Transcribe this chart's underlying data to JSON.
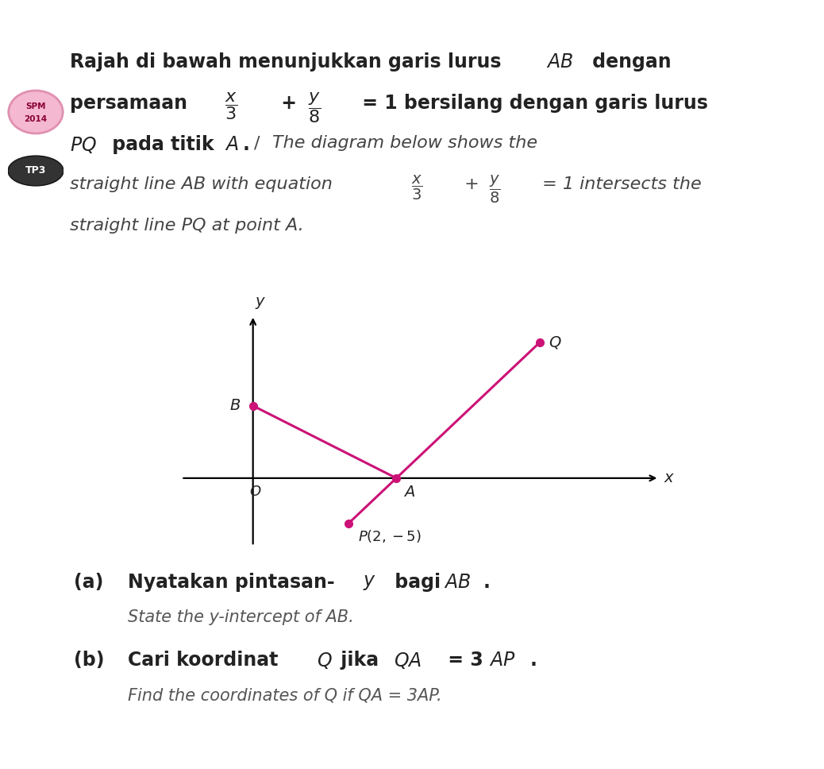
{
  "background_color": "#ffffff",
  "header_bar_color": "#4bacc6",
  "number_box_color": "#f0a500",
  "line_color": "#cc1177",
  "line_width": 2.2,
  "dot_size": 7,
  "A": [
    3,
    0
  ],
  "B": [
    0,
    8
  ],
  "P": [
    2,
    -5
  ],
  "Q": [
    6,
    15
  ],
  "fig_width": 10.38,
  "fig_height": 9.68,
  "dpi": 100
}
